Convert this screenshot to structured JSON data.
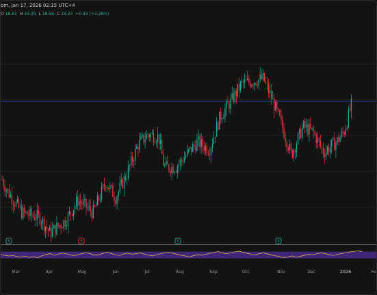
{
  "header": {
    "title_fragment": "om, Jan 17, 2026 02:15 UTC+4"
  },
  "ohlc": {
    "open_label": "O",
    "open": "18.81",
    "high_label": "H",
    "high": "19.39",
    "low_label": "L",
    "low": "18.58",
    "close_label": "C",
    "close": "19.23",
    "change": "+0.43 (+2.28%)"
  },
  "colors": {
    "background": "#131313",
    "up": "#22ab94",
    "down": "#f23645",
    "grid": "#1f1f1f",
    "price_line": "#2a3b8f",
    "rsi_fill": "#4a2a8a",
    "rsi_line": "#e8c650",
    "badge_green": "#22ab94",
    "badge_red": "#f23645"
  },
  "time_axis": {
    "labels": [
      "Mar",
      "Apr",
      "May",
      "Jun",
      "Jul",
      "Aug",
      "Sep",
      "Oct",
      "Nov",
      "Dec",
      "2026",
      "Feb"
    ]
  },
  "event_badges": [
    {
      "letter": "S",
      "type": "green"
    },
    {
      "letter": "E",
      "type": "red"
    },
    {
      "letter": "S",
      "type": "green"
    },
    {
      "letter": "S",
      "type": "green"
    }
  ],
  "chart_data": {
    "type": "candlestick",
    "title": "",
    "subtitle": "",
    "ylabel": "",
    "xlabel": "",
    "ylim": [
      12.0,
      20.5
    ],
    "x_range": [
      "2025-02-17",
      "2026-02-05"
    ],
    "grid": true,
    "legend": "none",
    "price_line": 17.6,
    "series": [
      {
        "values": [
          [
            "2025-02-17",
            15.2
          ],
          [
            "2025-03-01",
            14.1
          ],
          [
            "2025-03-15",
            13.2
          ],
          [
            "2025-04-01",
            13.0
          ],
          [
            "2025-04-10",
            12.4
          ],
          [
            "2025-04-25",
            12.9
          ],
          [
            "2025-05-06",
            13.7
          ],
          [
            "2025-05-20",
            13.2
          ],
          [
            "2025-06-01",
            14.4
          ],
          [
            "2025-06-10",
            13.8
          ],
          [
            "2025-06-20",
            14.7
          ],
          [
            "2025-07-01",
            15.9
          ],
          [
            "2025-07-10",
            16.3
          ],
          [
            "2025-07-20",
            16.2
          ],
          [
            "2025-07-25",
            15.0
          ],
          [
            "2025-08-05",
            15.0
          ],
          [
            "2025-08-15",
            15.5
          ],
          [
            "2025-08-25",
            16.0
          ],
          [
            "2025-09-05",
            15.7
          ],
          [
            "2025-09-15",
            17.0
          ],
          [
            "2025-09-25",
            17.6
          ],
          [
            "2025-10-05",
            18.3
          ],
          [
            "2025-10-15",
            18.4
          ],
          [
            "2025-10-25",
            18.5
          ],
          [
            "2025-11-01",
            17.8
          ],
          [
            "2025-11-10",
            16.8
          ],
          [
            "2025-11-20",
            15.5
          ],
          [
            "2025-12-01",
            16.6
          ],
          [
            "2025-12-10",
            16.4
          ],
          [
            "2025-12-20",
            15.6
          ],
          [
            "2026-01-01",
            16.0
          ],
          [
            "2026-01-08",
            16.4
          ],
          [
            "2026-01-15",
            17.5
          ]
        ]
      }
    ],
    "indicator": {
      "type": "line",
      "name": "",
      "ylim": [
        0,
        100
      ],
      "upper_band": 70,
      "lower_band": 30,
      "values": [
        52,
        48,
        44,
        47,
        41,
        38,
        43,
        36,
        40,
        34,
        45,
        52,
        58,
        49,
        55,
        61,
        57,
        50,
        46,
        53,
        59,
        63,
        56,
        48,
        52,
        60,
        66,
        58,
        51,
        47,
        56,
        61,
        54,
        58,
        62,
        55,
        49,
        44,
        52,
        57,
        63,
        67,
        60,
        54,
        48,
        44,
        39,
        46,
        52,
        48,
        55,
        60,
        65,
        70,
        62,
        57,
        63,
        68,
        72,
        66,
        60,
        55,
        51,
        58,
        62,
        56,
        50,
        45,
        40,
        34,
        39,
        44,
        37,
        42,
        48,
        54,
        51,
        57,
        62,
        58,
        52,
        47,
        53,
        58,
        63,
        68,
        71,
        74,
        70
      ]
    }
  }
}
